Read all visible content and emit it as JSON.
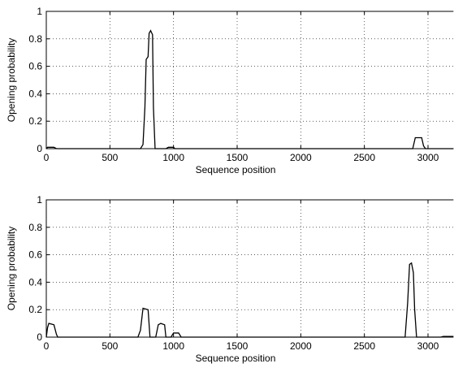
{
  "chart_data": [
    {
      "type": "line",
      "xlabel": "Sequence position",
      "ylabel": "Opening probability",
      "x": [
        0,
        10,
        20,
        60,
        80,
        740,
        760,
        775,
        785,
        800,
        808,
        820,
        835,
        842,
        855,
        940,
        960,
        1000,
        1010,
        2880,
        2900,
        2950,
        2965,
        2980,
        3200
      ],
      "values": [
        0,
        0.01,
        0.01,
        0.01,
        0,
        0,
        0.03,
        0.3,
        0.65,
        0.67,
        0.84,
        0.86,
        0.83,
        0.3,
        0,
        0,
        0.01,
        0.01,
        0,
        0,
        0.08,
        0.08,
        0.02,
        0,
        0
      ],
      "color": "#000000",
      "xlim": [
        0,
        3200
      ],
      "ylim": [
        0,
        1
      ],
      "xticks": [
        0,
        500,
        1000,
        1500,
        2000,
        2500,
        3000
      ],
      "yticks": [
        0,
        0.2,
        0.4,
        0.6,
        0.8,
        1
      ],
      "grid": true
    },
    {
      "type": "line",
      "xlabel": "Sequence position",
      "ylabel": "Opening probability",
      "x": [
        0,
        10,
        20,
        60,
        80,
        90,
        720,
        740,
        760,
        800,
        815,
        860,
        880,
        900,
        930,
        940,
        980,
        1000,
        1040,
        1060,
        2820,
        2840,
        2855,
        2870,
        2885,
        2895,
        2910,
        3100,
        3120,
        3200
      ],
      "values": [
        0,
        0.07,
        0.1,
        0.09,
        0.02,
        0,
        0,
        0.05,
        0.21,
        0.2,
        0,
        0,
        0.09,
        0.1,
        0.09,
        0,
        0,
        0.03,
        0.03,
        0,
        0,
        0.25,
        0.53,
        0.54,
        0.47,
        0.2,
        0,
        0,
        0.005,
        0.005
      ],
      "color": "#000000",
      "xlim": [
        0,
        3200
      ],
      "ylim": [
        0,
        1
      ],
      "xticks": [
        0,
        500,
        1000,
        1500,
        2000,
        2500,
        3000
      ],
      "yticks": [
        0,
        0.2,
        0.4,
        0.6,
        0.8,
        1
      ],
      "grid": true
    }
  ]
}
